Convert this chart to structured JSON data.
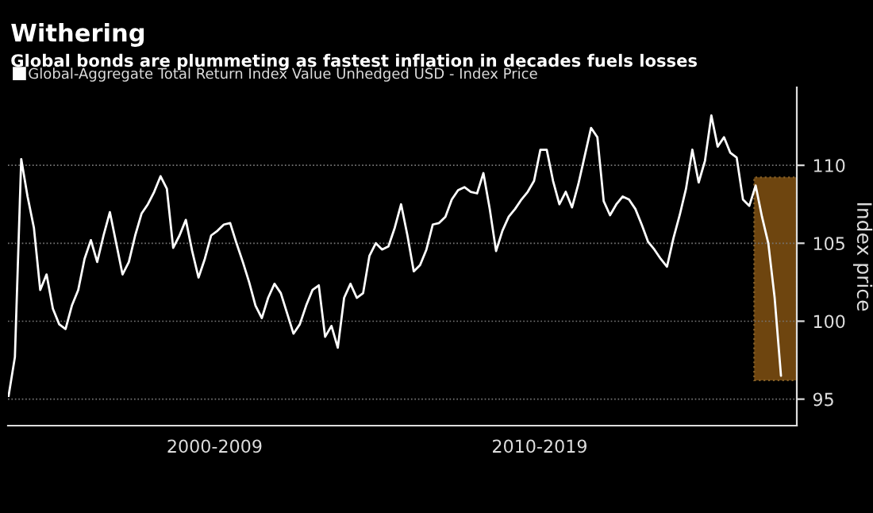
{
  "chart_data": {
    "type": "line",
    "title": "Withering",
    "subtitle": "Global bonds are plummeting as fastest inflation in decades fuels losses",
    "ylabel": "Index price",
    "annotations": [
      "2000-2009",
      "2010-2019"
    ],
    "categories": [
      null,
      null,
      null,
      null,
      null,
      null,
      null,
      null,
      null,
      null,
      null,
      null,
      null,
      null,
      null,
      null,
      null,
      null,
      null,
      null,
      null,
      null,
      null,
      null,
      null,
      null,
      null,
      null,
      null,
      null,
      null,
      null,
      null,
      null,
      null,
      null,
      null,
      null,
      null,
      null,
      null,
      null,
      null,
      null,
      null,
      null,
      null,
      null,
      null,
      null,
      null,
      null,
      null,
      null,
      null,
      null,
      null,
      null,
      null,
      null,
      null,
      null,
      null,
      null,
      null,
      null,
      null,
      null,
      null,
      null,
      null,
      null,
      null,
      null,
      null,
      null,
      null,
      null,
      null,
      null,
      null,
      null,
      null,
      null,
      null,
      null,
      null,
      null,
      null,
      null,
      null,
      null,
      null,
      null,
      null,
      null,
      null,
      null,
      null,
      null,
      null,
      null,
      null,
      null,
      null,
      null,
      null,
      null,
      null,
      null,
      null,
      null,
      null,
      null,
      null,
      null,
      null,
      null,
      null,
      null,
      null,
      null,
      null
    ],
    "series": [
      {
        "name": "Global-Aggregate Total Return Index Value Unhedged USD - Index Price",
        "color": "#ffffff",
        "values": [
          95.2,
          97.7,
          110.4,
          108.0,
          106.0,
          102.0,
          103.0,
          100.8,
          99.8,
          99.5,
          101.0,
          102.0,
          104.0,
          105.2,
          103.8,
          105.5,
          107.0,
          105.0,
          103.0,
          103.8,
          105.5,
          106.9,
          107.5,
          108.3,
          109.3,
          108.5,
          104.7,
          105.5,
          106.5,
          104.5,
          102.8,
          104.0,
          105.5,
          105.8,
          106.2,
          106.3,
          105.0,
          103.8,
          102.5,
          101.0,
          100.2,
          101.5,
          102.4,
          101.8,
          100.5,
          99.2,
          99.8,
          101.0,
          102.0,
          102.3,
          99.0,
          99.7,
          98.3,
          101.5,
          102.4,
          101.5,
          101.8,
          104.2,
          105.0,
          104.6,
          104.8,
          106.0,
          107.5,
          105.5,
          103.2,
          103.6,
          104.6,
          106.2,
          106.3,
          106.7,
          107.8,
          108.4,
          108.6,
          108.3,
          108.2,
          109.5,
          107.2,
          104.5,
          105.8,
          106.7,
          107.2,
          107.8,
          108.3,
          109.0,
          111.0,
          111.0,
          109.0,
          107.5,
          108.3,
          107.3,
          108.8,
          110.6,
          112.4,
          111.8,
          107.7,
          106.8,
          107.5,
          108.0,
          107.8,
          107.2,
          106.2,
          105.1,
          104.6,
          104.0,
          103.5,
          105.3,
          106.8,
          108.5,
          111.0,
          108.9,
          110.3,
          113.2,
          111.2,
          111.8,
          110.8,
          110.5,
          107.8,
          107.4,
          108.7,
          106.7,
          105.0,
          101.5,
          96.5
        ]
      }
    ],
    "ylim": [
      93.3,
      115
    ],
    "yticks": [
      95,
      100,
      105,
      110
    ],
    "grid": "y",
    "legend": "top left",
    "marker": "none",
    "line_style": "solid"
  }
}
